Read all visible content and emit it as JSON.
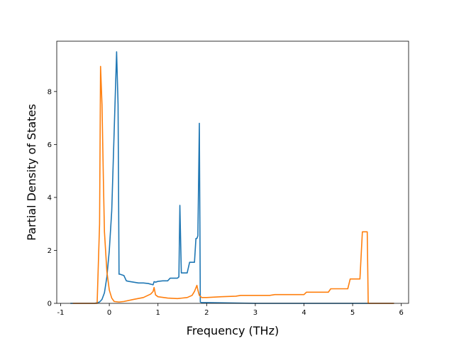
{
  "chart_data": {
    "type": "line",
    "title": "",
    "xlabel": "Frequency (THz)",
    "ylabel": "Partial Density of States",
    "xlim": [
      -1.08,
      6.15
    ],
    "ylim": [
      0,
      9.9
    ],
    "xticks": [
      -1,
      0,
      1,
      2,
      3,
      4,
      5,
      6
    ],
    "yticks": [
      0,
      2,
      4,
      6,
      8
    ],
    "grid": false,
    "legend": "none",
    "series": [
      {
        "color": "#1f77b4",
        "x": [
          -0.8,
          -0.3,
          -0.2,
          -0.15,
          -0.1,
          -0.05,
          0.0,
          0.05,
          0.1,
          0.15,
          0.18,
          0.2,
          0.22,
          0.3,
          0.35,
          0.4,
          0.5,
          0.6,
          0.7,
          0.8,
          0.9,
          0.92,
          0.95,
          1.0,
          1.1,
          1.2,
          1.25,
          1.4,
          1.43,
          1.45,
          1.48,
          1.6,
          1.65,
          1.75,
          1.78,
          1.8,
          1.82,
          1.85,
          1.87,
          1.9,
          2.0,
          3.0,
          5.85
        ],
        "y": [
          0.0,
          0.0,
          0.05,
          0.15,
          0.4,
          1.0,
          2.0,
          3.5,
          6.5,
          9.5,
          7.5,
          1.1,
          1.1,
          1.05,
          0.85,
          0.83,
          0.8,
          0.77,
          0.77,
          0.75,
          0.7,
          0.82,
          0.8,
          0.83,
          0.85,
          0.85,
          0.95,
          0.95,
          1.0,
          3.7,
          1.15,
          1.15,
          1.55,
          1.55,
          2.45,
          2.45,
          2.55,
          6.8,
          0.05,
          0.03,
          0.03,
          0.0,
          0.0
        ]
      },
      {
        "color": "#ff7f0e",
        "x": [
          -0.75,
          -0.25,
          -0.2,
          -0.18,
          -0.15,
          -0.12,
          -0.1,
          -0.05,
          0.0,
          0.05,
          0.1,
          0.2,
          0.3,
          0.5,
          0.7,
          0.85,
          0.9,
          0.92,
          0.95,
          1.0,
          1.2,
          1.4,
          1.6,
          1.7,
          1.75,
          1.8,
          1.82,
          1.85,
          1.9,
          2.0,
          2.3,
          2.6,
          2.7,
          3.0,
          3.3,
          3.4,
          3.7,
          4.0,
          4.05,
          4.5,
          4.55,
          4.9,
          4.95,
          5.15,
          5.2,
          5.3,
          5.32,
          5.85
        ],
        "y": [
          0.0,
          0.0,
          3.0,
          8.95,
          7.5,
          4.5,
          2.7,
          1.2,
          0.5,
          0.2,
          0.07,
          0.05,
          0.07,
          0.15,
          0.22,
          0.35,
          0.45,
          0.6,
          0.32,
          0.25,
          0.2,
          0.18,
          0.22,
          0.3,
          0.45,
          0.68,
          0.5,
          0.3,
          0.22,
          0.22,
          0.25,
          0.27,
          0.3,
          0.3,
          0.3,
          0.33,
          0.33,
          0.33,
          0.42,
          0.42,
          0.55,
          0.55,
          0.92,
          0.92,
          2.7,
          2.7,
          0.0,
          0.0
        ]
      }
    ]
  }
}
